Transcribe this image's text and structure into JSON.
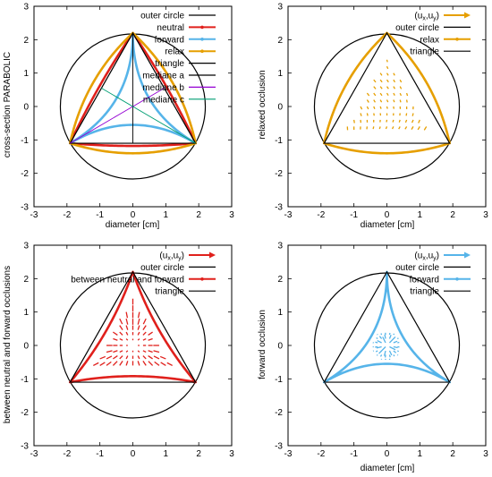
{
  "chart_data": [
    {
      "type": "line",
      "xlabel": "diameter [cm]",
      "ylabel": "cross-section PARABOLIC",
      "xlim": [
        -3,
        3
      ],
      "ylim": [
        -3,
        3
      ],
      "xticks": [
        "-3",
        "-2",
        "-1",
        "0",
        "1",
        "2",
        "3"
      ],
      "yticks": [
        "-3",
        "-2",
        "-1",
        "0",
        "1",
        "2",
        "3"
      ],
      "legend": "top-right",
      "geometry": {
        "circle_radius": 2.2,
        "triangle_vertices": [
          [
            0,
            2.2
          ],
          [
            -1.905,
            -1.1
          ],
          [
            1.905,
            -1.1
          ]
        ]
      },
      "series": [
        {
          "name": "outer circle",
          "kind": "circle",
          "color": "#000000",
          "style": "line"
        },
        {
          "name": "neutral",
          "kind": "curve",
          "bow": -0.08,
          "color": "#e0201c",
          "style": "linespoints"
        },
        {
          "name": "forward",
          "kind": "curve",
          "bow": 0.55,
          "color": "#56b4e9",
          "style": "linespoints"
        },
        {
          "name": "relax",
          "kind": "curve",
          "bow": -0.3,
          "color": "#e69f00",
          "style": "linespoints"
        },
        {
          "name": "triangle",
          "kind": "triangle",
          "color": "#000000",
          "style": "line"
        },
        {
          "name": "mediane a",
          "kind": "median",
          "vertex": 0,
          "color": "#000000",
          "style": "line"
        },
        {
          "name": "mediane b",
          "kind": "median",
          "vertex": 1,
          "color": "#9400d3",
          "style": "line"
        },
        {
          "name": "mediane c",
          "kind": "median",
          "vertex": 2,
          "color": "#009e73",
          "style": "line"
        }
      ]
    },
    {
      "type": "line",
      "xlabel": "diameter [cm]",
      "ylabel": "relaxed occlusion",
      "xlim": [
        -3,
        3
      ],
      "ylim": [
        -3,
        3
      ],
      "xticks": [
        "-3",
        "-2",
        "-1",
        "0",
        "1",
        "2",
        "3"
      ],
      "yticks": [
        "-3",
        "-2",
        "-1",
        "0",
        "1",
        "2",
        "3"
      ],
      "legend": "top-right",
      "series": [
        {
          "name": "(u_x,u_y)",
          "kind": "field",
          "field": "relax",
          "color": "#e69f00",
          "style": "vectors"
        },
        {
          "name": "outer circle",
          "kind": "circle",
          "color": "#000000",
          "style": "line"
        },
        {
          "name": "relax",
          "kind": "curve",
          "bow": -0.3,
          "color": "#e69f00",
          "style": "linespoints"
        },
        {
          "name": "triangle",
          "kind": "triangle",
          "color": "#000000",
          "style": "line"
        }
      ]
    },
    {
      "type": "line",
      "xlabel": "",
      "ylabel": "between neutral and forward occlusions",
      "xlim": [
        -3,
        3
      ],
      "ylim": [
        -3,
        3
      ],
      "xticks": [
        "-3",
        "-2",
        "-1",
        "0",
        "1",
        "2",
        "3"
      ],
      "yticks": [
        "-3",
        "-2",
        "-1",
        "0",
        "1",
        "2",
        "3"
      ],
      "legend": "top-right",
      "series": [
        {
          "name": "(u_x,u_y)",
          "kind": "field",
          "field": "between",
          "color": "#e0201c",
          "style": "vectors"
        },
        {
          "name": "outer circle",
          "kind": "circle",
          "color": "#000000",
          "style": "line"
        },
        {
          "name": "between neutral and forward",
          "kind": "curve",
          "bow": 0.18,
          "color": "#e0201c",
          "style": "linespoints"
        },
        {
          "name": "triangle",
          "kind": "triangle",
          "color": "#000000",
          "style": "line"
        }
      ]
    },
    {
      "type": "line",
      "xlabel": "diameter [cm]",
      "ylabel": "forward occlusion",
      "xlim": [
        -3,
        3
      ],
      "ylim": [
        -3,
        3
      ],
      "xticks": [
        "-3",
        "-2",
        "-1",
        "0",
        "1",
        "2",
        "3"
      ],
      "yticks": [
        "-3",
        "-2",
        "-1",
        "0",
        "1",
        "2",
        "3"
      ],
      "legend": "top-right",
      "series": [
        {
          "name": "(u_x,u_y)",
          "kind": "field",
          "field": "forward",
          "color": "#56b4e9",
          "style": "vectors"
        },
        {
          "name": "outer circle",
          "kind": "circle",
          "color": "#000000",
          "style": "line"
        },
        {
          "name": "forward",
          "kind": "curve",
          "bow": 0.55,
          "color": "#56b4e9",
          "style": "linespoints"
        },
        {
          "name": "triangle",
          "kind": "triangle",
          "color": "#000000",
          "style": "line"
        }
      ]
    }
  ]
}
